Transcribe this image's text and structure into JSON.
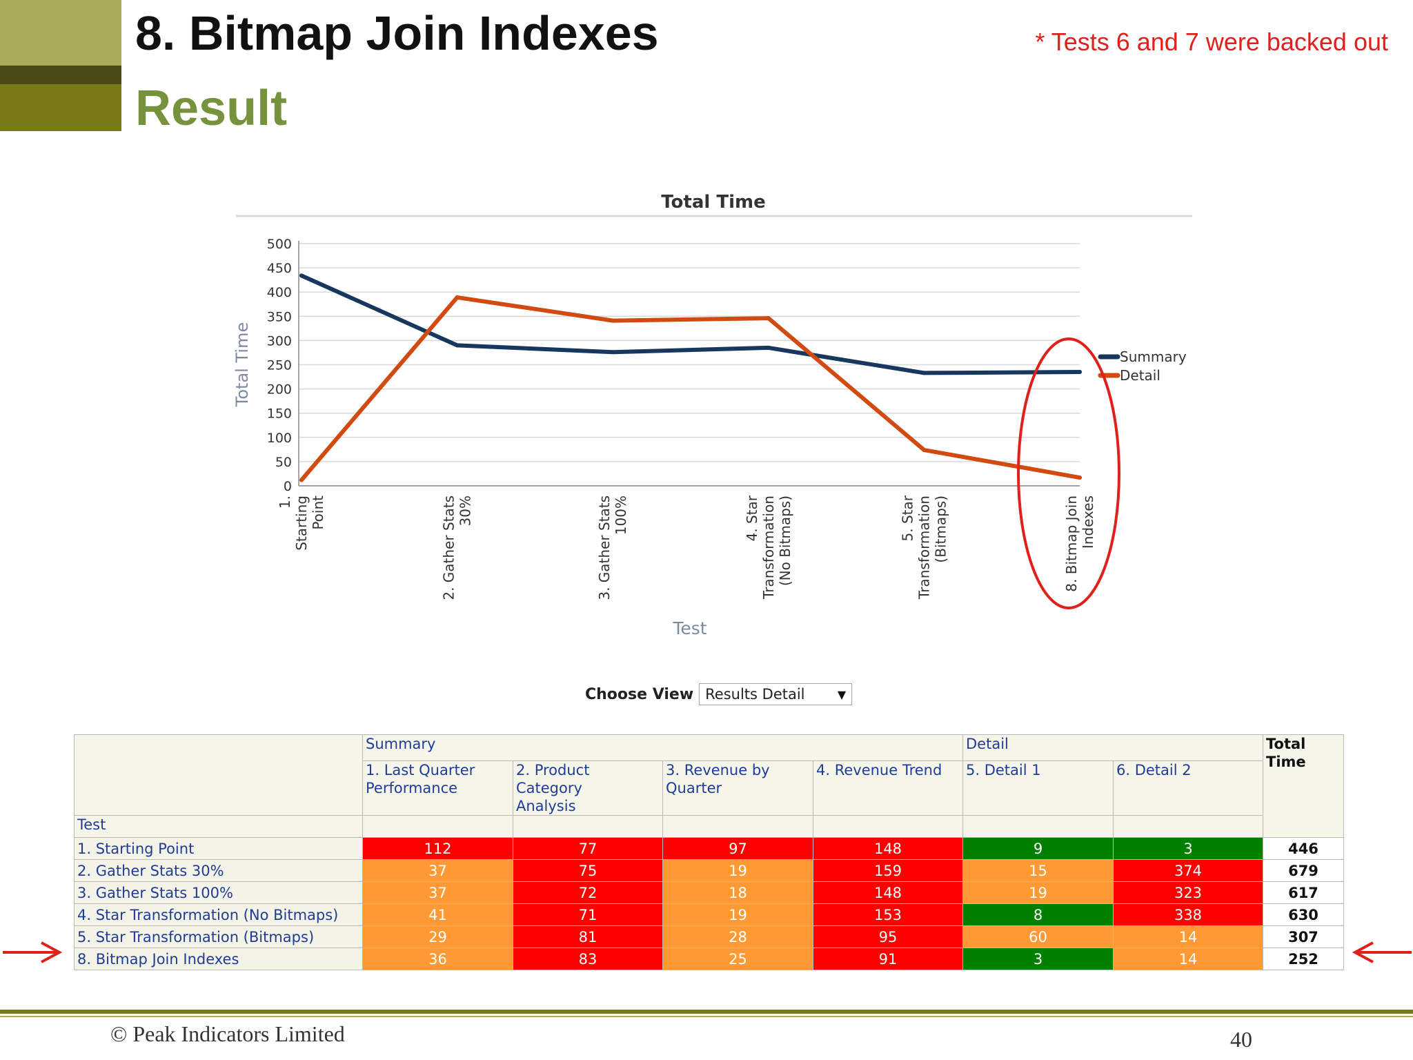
{
  "slide": {
    "title": "8. Bitmap Join Indexes",
    "subtitle": "Result",
    "note": "* Tests 6 and 7 were backed out",
    "copyright": "© Peak Indicators Limited",
    "page_number": "40"
  },
  "chart_data": {
    "type": "line",
    "title": "Total Time",
    "xlabel": "Test",
    "ylabel": "Total Time",
    "ylim": [
      0,
      500
    ],
    "yticks": [
      0,
      50,
      100,
      150,
      200,
      250,
      300,
      350,
      400,
      450,
      500
    ],
    "categories": [
      [
        "1.",
        "Starting",
        "Point"
      ],
      [
        "2. Gather Stats",
        "30%"
      ],
      [
        "3. Gather Stats",
        "100%"
      ],
      [
        "4. Star",
        "Transformation",
        "(No Bitmaps)"
      ],
      [
        "5. Star",
        "Transformation",
        "(Bitmaps)"
      ],
      [
        "8. Bitmap Join",
        "Indexes"
      ]
    ],
    "series": [
      {
        "name": "Summary",
        "color": "#17375e",
        "values": [
          434,
          290,
          276,
          285,
          233,
          235
        ]
      },
      {
        "name": "Detail",
        "color": "#d14a10",
        "values": [
          12,
          389,
          341,
          346,
          74,
          17
        ]
      }
    ],
    "legend": "right",
    "grid": true,
    "highlight": "8. Bitmap Join Indexes"
  },
  "view": {
    "label": "Choose View",
    "selected": "Results Detail"
  },
  "table": {
    "group_summary": "Summary",
    "group_detail": "Detail",
    "total_header_line1": "Total",
    "total_header_line2": "Time",
    "row_header": "Test",
    "columns": [
      [
        "1. Last Quarter",
        "Performance"
      ],
      [
        "2. Product Category",
        "Analysis"
      ],
      [
        "3. Revenue by",
        "Quarter"
      ],
      [
        "4. Revenue Trend",
        ""
      ],
      [
        "5. Detail 1",
        ""
      ],
      [
        "6. Detail 2",
        ""
      ]
    ],
    "rows": [
      {
        "label": "1. Starting Point",
        "values": [
          112,
          77,
          97,
          148,
          9,
          3
        ],
        "colors": [
          "red",
          "red",
          "red",
          "red",
          "green",
          "green"
        ],
        "total": 446
      },
      {
        "label": "2. Gather Stats 30%",
        "values": [
          37,
          75,
          19,
          159,
          15,
          374
        ],
        "colors": [
          "orange",
          "red",
          "orange",
          "red",
          "orange",
          "red"
        ],
        "total": 679
      },
      {
        "label": "3. Gather Stats 100%",
        "values": [
          37,
          72,
          18,
          148,
          19,
          323
        ],
        "colors": [
          "orange",
          "red",
          "orange",
          "red",
          "orange",
          "red"
        ],
        "total": 617
      },
      {
        "label": "4. Star Transformation (No Bitmaps)",
        "values": [
          41,
          71,
          19,
          153,
          8,
          338
        ],
        "colors": [
          "orange",
          "red",
          "orange",
          "red",
          "green",
          "red"
        ],
        "total": 630
      },
      {
        "label": "5. Star Transformation (Bitmaps)",
        "values": [
          29,
          81,
          28,
          95,
          60,
          14
        ],
        "colors": [
          "orange",
          "red",
          "orange",
          "red",
          "orange",
          "orange"
        ],
        "total": 307
      },
      {
        "label": "8. Bitmap Join Indexes",
        "values": [
          36,
          83,
          25,
          91,
          3,
          14
        ],
        "colors": [
          "orange",
          "red",
          "orange",
          "red",
          "green",
          "orange"
        ],
        "total": 252
      }
    ]
  }
}
